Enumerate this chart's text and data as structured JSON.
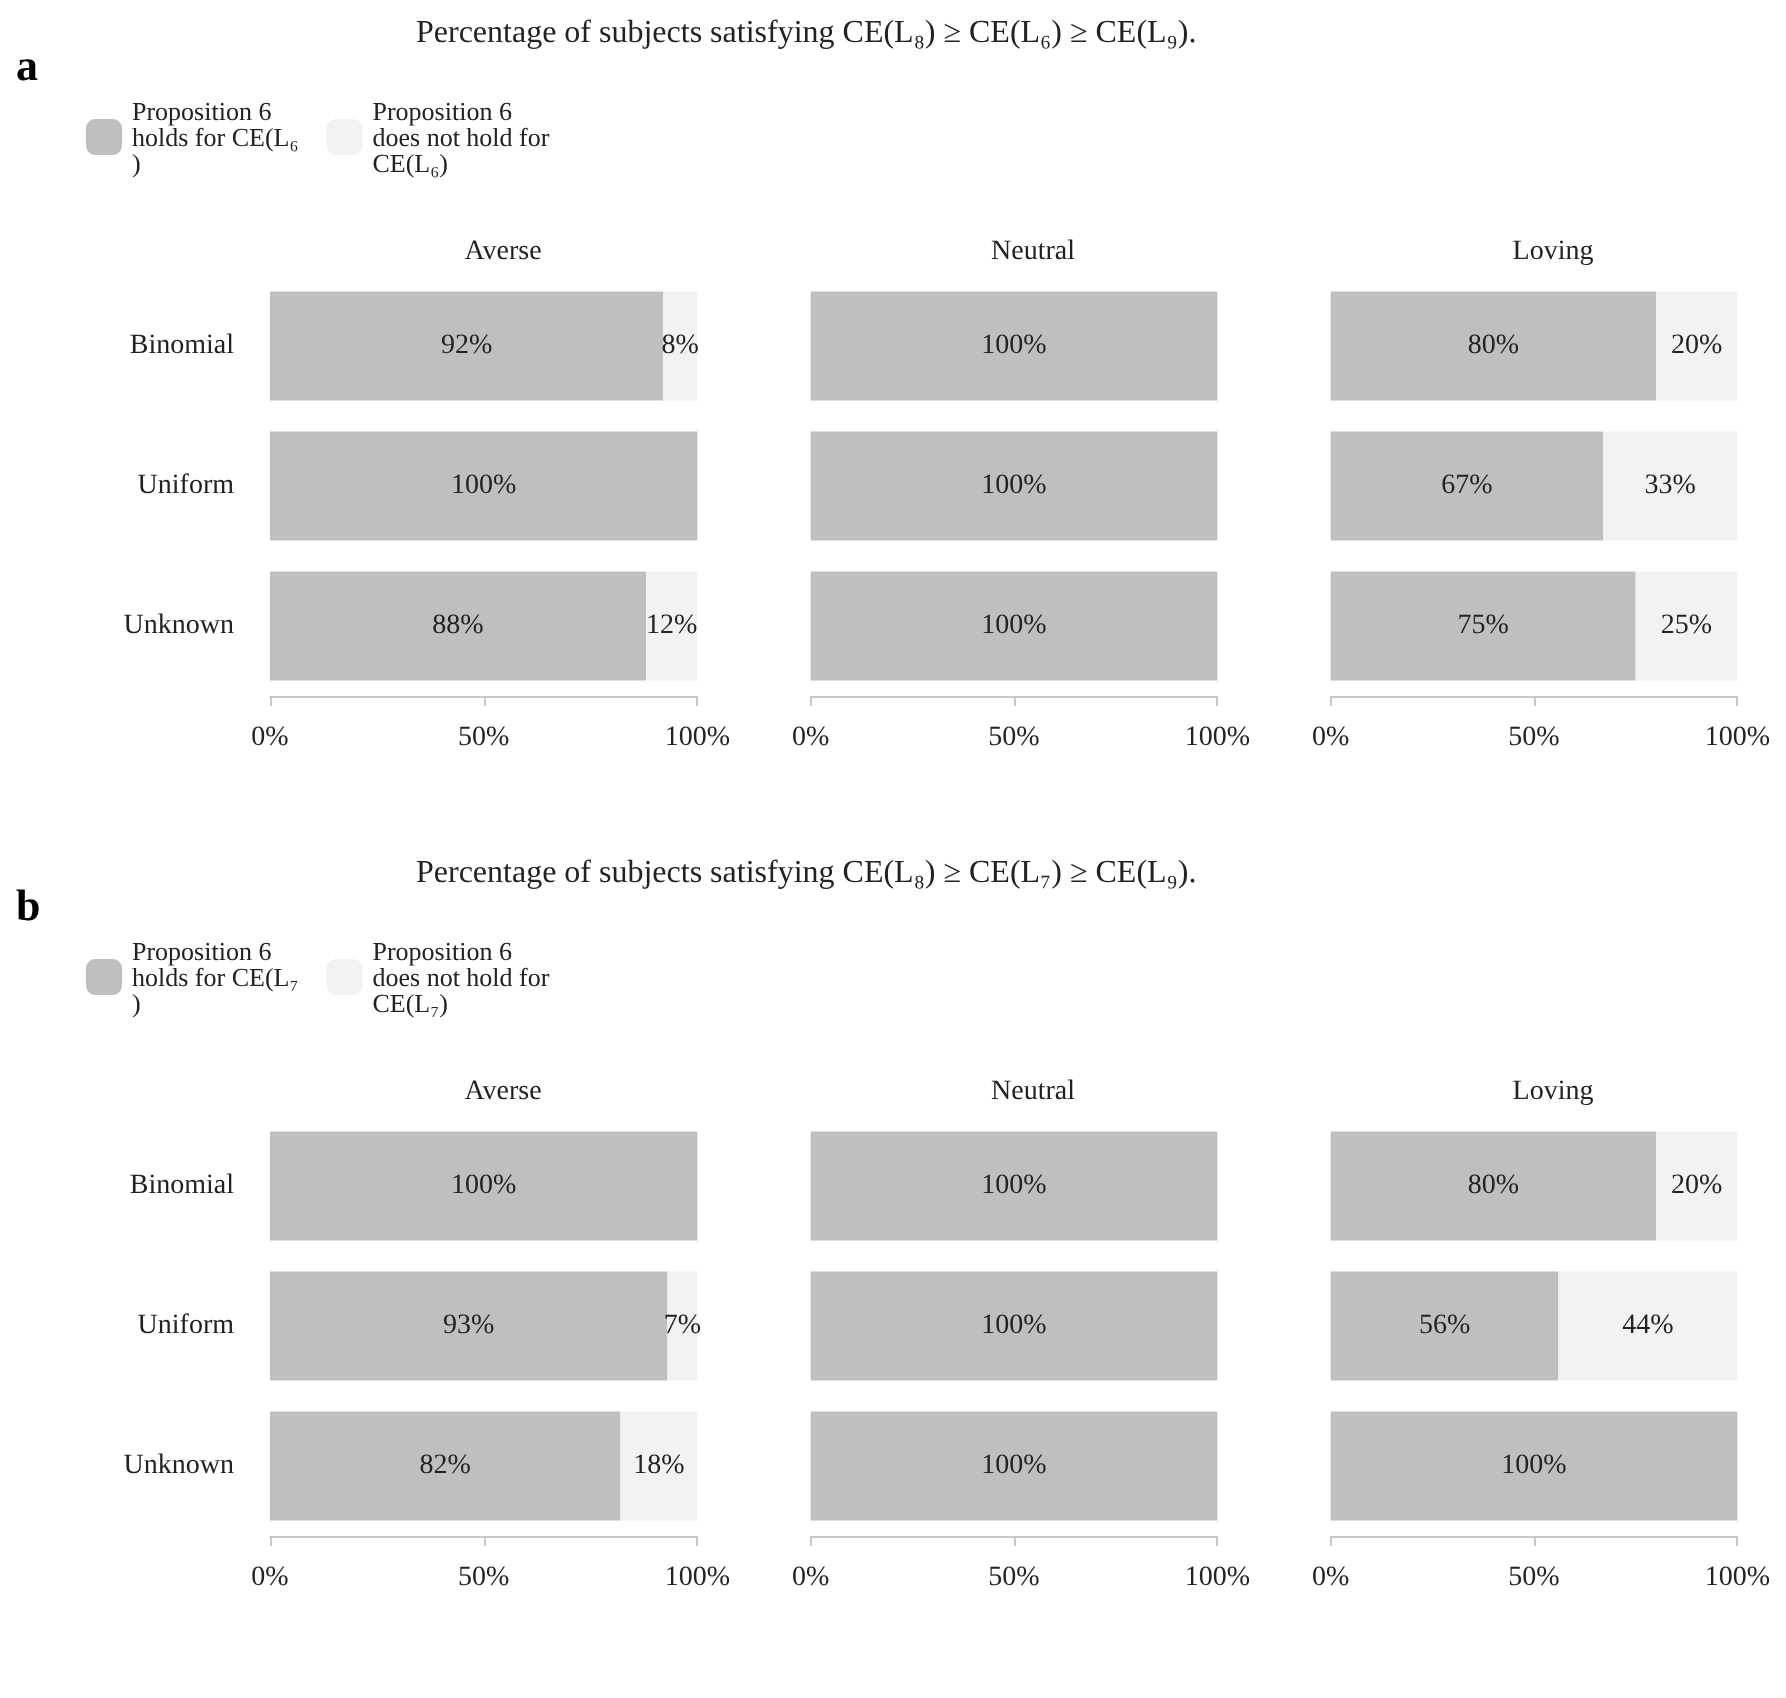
{
  "chart_data": [
    {
      "type": "bar",
      "orientation": "horizontal",
      "stacked": true,
      "title": "Averse",
      "annotations": [
        "a",
        "Percentage of subjects satisfying CE(L₈) ≥ CE(L₆) ≥ CE(L₉)."
      ],
      "legend": "top left",
      "categories": [
        "Binomial",
        "Uniform",
        "Unknown"
      ],
      "xlim": [
        0,
        100
      ],
      "xticks": [
        {
          "value": 0,
          "label": "0%"
        },
        {
          "value": 50,
          "label": "50%"
        },
        {
          "value": 100,
          "label": "100%"
        }
      ],
      "grid": false,
      "series": [
        {
          "name": "Proposition 6 holds for CE(L₆)",
          "color": "#bfbfbf",
          "values": [
            92,
            100,
            88
          ],
          "value_labels": [
            "92%",
            "100%",
            "88%"
          ]
        },
        {
          "name": "Proposition 6 does not hold for CE(L₆)",
          "color": "#f2f2f2",
          "values": [
            8,
            0,
            12
          ],
          "value_labels": [
            "8%",
            null,
            "12%"
          ]
        }
      ]
    },
    {
      "type": "bar",
      "orientation": "horizontal",
      "stacked": true,
      "title": "Neutral",
      "tick_labels": "x",
      "categories": [
        "Binomial",
        "Uniform",
        "Unknown"
      ],
      "xlim": [
        0,
        100
      ],
      "xticks": [
        {
          "value": 0,
          "label": "0%"
        },
        {
          "value": 50,
          "label": "50%"
        },
        {
          "value": 100,
          "label": "100%"
        }
      ],
      "grid": false,
      "series": [
        {
          "color": "#bfbfbf",
          "values": [
            100,
            100,
            100
          ],
          "value_labels": [
            "100%",
            "100%",
            "100%"
          ]
        },
        {
          "color": "#f2f2f2",
          "values": [
            0,
            0,
            0
          ],
          "value_labels": [
            null,
            null,
            null
          ]
        }
      ]
    },
    {
      "type": "bar",
      "orientation": "horizontal",
      "stacked": true,
      "title": "Loving",
      "tick_labels": "x",
      "categories": [
        "Binomial",
        "Uniform",
        "Unknown"
      ],
      "xlim": [
        0,
        100
      ],
      "xticks": [
        {
          "value": 0,
          "label": "0%"
        },
        {
          "value": 50,
          "label": "50%"
        },
        {
          "value": 100,
          "label": "100%"
        }
      ],
      "grid": false,
      "series": [
        {
          "color": "#bfbfbf",
          "values": [
            80,
            67,
            75
          ],
          "value_labels": [
            "80%",
            "67%",
            "75%"
          ]
        },
        {
          "color": "#f2f2f2",
          "values": [
            20,
            33,
            25
          ],
          "value_labels": [
            "20%",
            "33%",
            "25%"
          ]
        }
      ]
    },
    {
      "type": "bar",
      "orientation": "horizontal",
      "stacked": true,
      "title": "Averse",
      "annotations": [
        "b",
        "Percentage of subjects satisfying CE(L₈) ≥ CE(L₇) ≥ CE(L₉)."
      ],
      "legend": "top left",
      "categories": [
        "Binomial",
        "Uniform",
        "Unknown"
      ],
      "xlim": [
        0,
        100
      ],
      "xticks": [
        {
          "value": 0,
          "label": "0%"
        },
        {
          "value": 50,
          "label": "50%"
        },
        {
          "value": 100,
          "label": "100%"
        }
      ],
      "grid": false,
      "series": [
        {
          "name": "Proposition 6 holds for CE(L₇)",
          "color": "#bfbfbf",
          "values": [
            100,
            93,
            82
          ],
          "value_labels": [
            "100%",
            "93%",
            "82%"
          ]
        },
        {
          "name": "Proposition 6 does not hold for CE(L₇)",
          "color": "#f2f2f2",
          "values": [
            0,
            7,
            18
          ],
          "value_labels": [
            null,
            "7%",
            "18%"
          ]
        }
      ]
    },
    {
      "type": "bar",
      "orientation": "horizontal",
      "stacked": true,
      "title": "Neutral",
      "tick_labels": "x",
      "categories": [
        "Binomial",
        "Uniform",
        "Unknown"
      ],
      "xlim": [
        0,
        100
      ],
      "xticks": [
        {
          "value": 0,
          "label": "0%"
        },
        {
          "value": 50,
          "label": "50%"
        },
        {
          "value": 100,
          "label": "100%"
        }
      ],
      "grid": false,
      "series": [
        {
          "color": "#bfbfbf",
          "values": [
            100,
            100,
            100
          ],
          "value_labels": [
            "100%",
            "100%",
            "100%"
          ]
        },
        {
          "color": "#f2f2f2",
          "values": [
            0,
            0,
            0
          ],
          "value_labels": [
            null,
            null,
            null
          ]
        }
      ]
    },
    {
      "type": "bar",
      "orientation": "horizontal",
      "stacked": true,
      "title": "Loving",
      "tick_labels": "x",
      "categories": [
        "Binomial",
        "Uniform",
        "Unknown"
      ],
      "xlim": [
        0,
        100
      ],
      "xticks": [
        {
          "value": 0,
          "label": "0%"
        },
        {
          "value": 50,
          "label": "50%"
        },
        {
          "value": 100,
          "label": "100%"
        }
      ],
      "grid": false,
      "series": [
        {
          "color": "#bfbfbf",
          "values": [
            80,
            56,
            100
          ],
          "value_labels": [
            "80%",
            "56%",
            "100%"
          ]
        },
        {
          "color": "#f2f2f2",
          "values": [
            20,
            44,
            0
          ],
          "value_labels": [
            "20%",
            "44%",
            null
          ]
        }
      ]
    }
  ]
}
